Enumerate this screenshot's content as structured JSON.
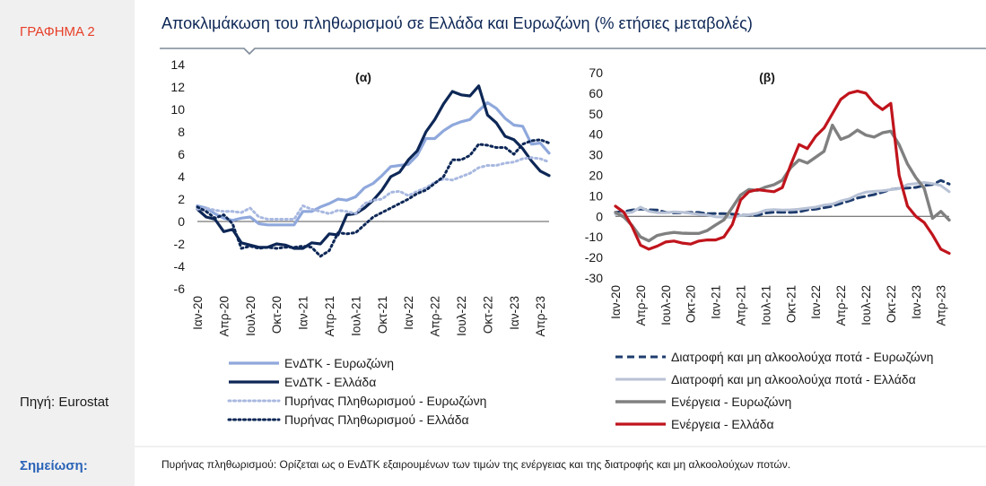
{
  "side": {
    "figure_label": "ΓΡΑΦΗΜΑ 2",
    "source": "Πηγή: Eurostat"
  },
  "title": "Αποκλιμάκωση του πληθωρισμού σε Ελλάδα και Ευρωζώνη (% ετήσιες μεταβολές)",
  "footer": {
    "label": "Σημείωση:",
    "note": "Πυρήνας πληθωρισμού: Ορίζεται ως ο ΕνΔΤΚ εξαιρουμένων των τιμών της ενέργειας και της διατροφής και μη αλκοολούχων ποτών."
  },
  "colors": {
    "hicp_ez": "#8fa8dc",
    "hicp_gr": "#0d2756",
    "core_ez": "#a8b8e0",
    "core_gr": "#0d2756",
    "food_ez": "#1f3d6e",
    "food_gr": "#b8c2d6",
    "energy_ez": "#808080",
    "energy_gr": "#c0141c"
  },
  "chart_data": [
    {
      "type": "line",
      "title": "(α)",
      "ylim": [
        -6,
        14
      ],
      "yticks": [
        -6,
        -4,
        -2,
        0,
        2,
        4,
        6,
        8,
        10,
        12,
        14
      ],
      "xtick_labels": [
        "Ιαν-20",
        "Απρ-20",
        "Ιουλ-20",
        "Οκτ-20",
        "Ιαν-21",
        "Απρ-21",
        "Ιουλ-21",
        "Οκτ-21",
        "Ιαν-22",
        "Απρ-22",
        "Ιουλ-22",
        "Οκτ-22",
        "Ιαν-23",
        "Απρ-23"
      ],
      "x": [
        "2020-01",
        "2020-02",
        "2020-03",
        "2020-04",
        "2020-05",
        "2020-06",
        "2020-07",
        "2020-08",
        "2020-09",
        "2020-10",
        "2020-11",
        "2020-12",
        "2021-01",
        "2021-02",
        "2021-03",
        "2021-04",
        "2021-05",
        "2021-06",
        "2021-07",
        "2021-08",
        "2021-09",
        "2021-10",
        "2021-11",
        "2021-12",
        "2022-01",
        "2022-02",
        "2022-03",
        "2022-04",
        "2022-05",
        "2022-06",
        "2022-07",
        "2022-08",
        "2022-09",
        "2022-10",
        "2022-11",
        "2022-12",
        "2023-01",
        "2023-02",
        "2023-03",
        "2023-04",
        "2023-05"
      ],
      "series": [
        {
          "name": "ΕνΔΤΚ - Ευρωζώνη",
          "style": "solid-light",
          "values": [
            1.4,
            1.2,
            0.7,
            0.3,
            0.1,
            0.3,
            0.4,
            -0.2,
            -0.3,
            -0.3,
            -0.3,
            -0.3,
            0.9,
            0.9,
            1.3,
            1.6,
            2.0,
            1.9,
            2.2,
            3.0,
            3.4,
            4.1,
            4.9,
            5.0,
            5.1,
            5.9,
            7.4,
            7.4,
            8.1,
            8.6,
            8.9,
            9.1,
            9.9,
            10.6,
            10.1,
            9.2,
            8.6,
            8.5,
            6.9,
            7.0,
            6.1
          ]
        },
        {
          "name": "ΕνΔΤΚ - Ελλάδα",
          "style": "solid-dark",
          "values": [
            1.1,
            0.4,
            0.2,
            -0.9,
            -0.7,
            -1.9,
            -2.1,
            -2.3,
            -2.3,
            -2.0,
            -2.1,
            -2.4,
            -2.4,
            -1.9,
            -2.0,
            -1.1,
            -1.2,
            0.6,
            0.7,
            1.2,
            1.9,
            2.8,
            4.0,
            4.4,
            5.5,
            6.3,
            8.0,
            9.1,
            10.5,
            11.6,
            11.3,
            11.2,
            12.1,
            9.5,
            8.8,
            7.6,
            7.3,
            6.5,
            5.4,
            4.5,
            4.1
          ]
        },
        {
          "name": "Πυρήνας Πληθωρισμού - Ευρωζώνη",
          "style": "dotted-light",
          "values": [
            1.1,
            1.2,
            1.0,
            0.9,
            0.9,
            0.8,
            1.2,
            0.4,
            0.2,
            0.2,
            0.2,
            0.2,
            1.4,
            1.1,
            0.9,
            0.7,
            1.0,
            0.9,
            0.7,
            1.6,
            1.9,
            2.0,
            2.6,
            2.7,
            2.3,
            2.7,
            3.0,
            3.5,
            3.8,
            3.7,
            4.0,
            4.3,
            4.8,
            5.0,
            5.0,
            5.2,
            5.3,
            5.6,
            5.7,
            5.6,
            5.3
          ]
        },
        {
          "name": "Πυρήνας Πληθωρισμού - Ελλάδα",
          "style": "dotted-dark",
          "values": [
            1.3,
            0.9,
            0.3,
            0.6,
            -0.2,
            -2.4,
            -2.2,
            -2.4,
            -2.3,
            -2.4,
            -2.3,
            -2.3,
            -2.2,
            -2.3,
            -3.1,
            -2.6,
            -1.0,
            -1.1,
            -1.0,
            -0.3,
            0.4,
            0.8,
            1.2,
            1.6,
            2.0,
            2.5,
            2.8,
            3.4,
            4.0,
            5.5,
            5.5,
            5.9,
            6.9,
            6.8,
            6.6,
            6.6,
            6.0,
            6.9,
            7.2,
            7.3,
            7.0
          ]
        }
      ]
    },
    {
      "type": "line",
      "title": "(β)",
      "ylim": [
        -30,
        70
      ],
      "yticks": [
        -30,
        -20,
        -10,
        0,
        10,
        20,
        30,
        40,
        50,
        60,
        70
      ],
      "xtick_labels": [
        "Ιαν-20",
        "Απρ-20",
        "Ιουλ-20",
        "Οκτ-20",
        "Ιαν-21",
        "Απρ-21",
        "Ιουλ-21",
        "Οκτ-21",
        "Ιαν-22",
        "Απρ-22",
        "Ιουλ-22",
        "Οκτ-22",
        "Ιαν-23",
        "Απρ-23"
      ],
      "x": [
        "2020-01",
        "2020-02",
        "2020-03",
        "2020-04",
        "2020-05",
        "2020-06",
        "2020-07",
        "2020-08",
        "2020-09",
        "2020-10",
        "2020-11",
        "2020-12",
        "2021-01",
        "2021-02",
        "2021-03",
        "2021-04",
        "2021-05",
        "2021-06",
        "2021-07",
        "2021-08",
        "2021-09",
        "2021-10",
        "2021-11",
        "2021-12",
        "2022-01",
        "2022-02",
        "2022-03",
        "2022-04",
        "2022-05",
        "2022-06",
        "2022-07",
        "2022-08",
        "2022-09",
        "2022-10",
        "2022-11",
        "2022-12",
        "2023-01",
        "2023-02",
        "2023-03",
        "2023-04",
        "2023-05"
      ],
      "series": [
        {
          "name": "Διατροφή και μη αλκοολούχα ποτά - Ευρωζώνη",
          "style": "dashed-dark",
          "values": [
            2.0,
            2.3,
            3.1,
            3.6,
            3.2,
            3.1,
            2.0,
            1.7,
            1.8,
            1.9,
            1.9,
            1.3,
            1.4,
            1.3,
            1.1,
            0.7,
            0.6,
            0.5,
            1.6,
            2.0,
            2.0,
            1.9,
            2.2,
            3.2,
            3.5,
            4.2,
            5.0,
            6.3,
            7.5,
            8.9,
            9.8,
            10.6,
            11.8,
            13.1,
            13.6,
            13.8,
            14.1,
            15.0,
            15.5,
            17.5,
            15.7
          ]
        },
        {
          "name": "Διατροφή και μη αλκοολούχα ποτά - Ελλάδα",
          "style": "solid-verylight",
          "values": [
            1.0,
            1.5,
            2.0,
            4.5,
            2.5,
            1.8,
            1.8,
            2.2,
            2.0,
            1.5,
            1.0,
            0.7,
            -0.2,
            -0.4,
            -0.5,
            0.5,
            0.8,
            1.5,
            3.0,
            3.3,
            3.1,
            3.2,
            3.5,
            4.0,
            4.5,
            5.5,
            6.0,
            7.5,
            8.5,
            10.5,
            11.8,
            12.2,
            12.5,
            13.0,
            13.5,
            15.5,
            16.0,
            16.5,
            16.0,
            15.0,
            12.0
          ]
        },
        {
          "name": "Ενέργεια - Ευρωζώνη",
          "style": "solid-gray",
          "values": [
            1.9,
            -0.3,
            -4.5,
            -10.0,
            -11.9,
            -9.3,
            -8.4,
            -7.8,
            -8.2,
            -8.3,
            -8.3,
            -6.9,
            -4.2,
            -1.7,
            4.3,
            10.4,
            13.1,
            12.6,
            14.3,
            15.4,
            17.6,
            23.7,
            27.5,
            26.0,
            28.8,
            31.7,
            44.4,
            37.5,
            39.1,
            42.0,
            39.6,
            38.6,
            40.7,
            41.5,
            34.9,
            25.5,
            18.9,
            13.7,
            -0.9,
            2.4,
            -1.8
          ]
        },
        {
          "name": "Ενέργεια - Ελλάδα",
          "style": "solid-red",
          "values": [
            5.0,
            2.0,
            -5.0,
            -14.0,
            -16.0,
            -14.5,
            -12.5,
            -12.0,
            -13.0,
            -13.5,
            -12.0,
            -11.5,
            -11.5,
            -10.0,
            -4.0,
            8.0,
            12.0,
            13.0,
            12.5,
            12.0,
            14.0,
            25.0,
            35.0,
            33.0,
            39.0,
            43.0,
            50.0,
            57.0,
            60.0,
            61.0,
            60.0,
            55.0,
            52.0,
            55.0,
            20.0,
            5.0,
            0.0,
            -3.0,
            -9.0,
            -16.0,
            -18.0
          ]
        }
      ]
    }
  ]
}
